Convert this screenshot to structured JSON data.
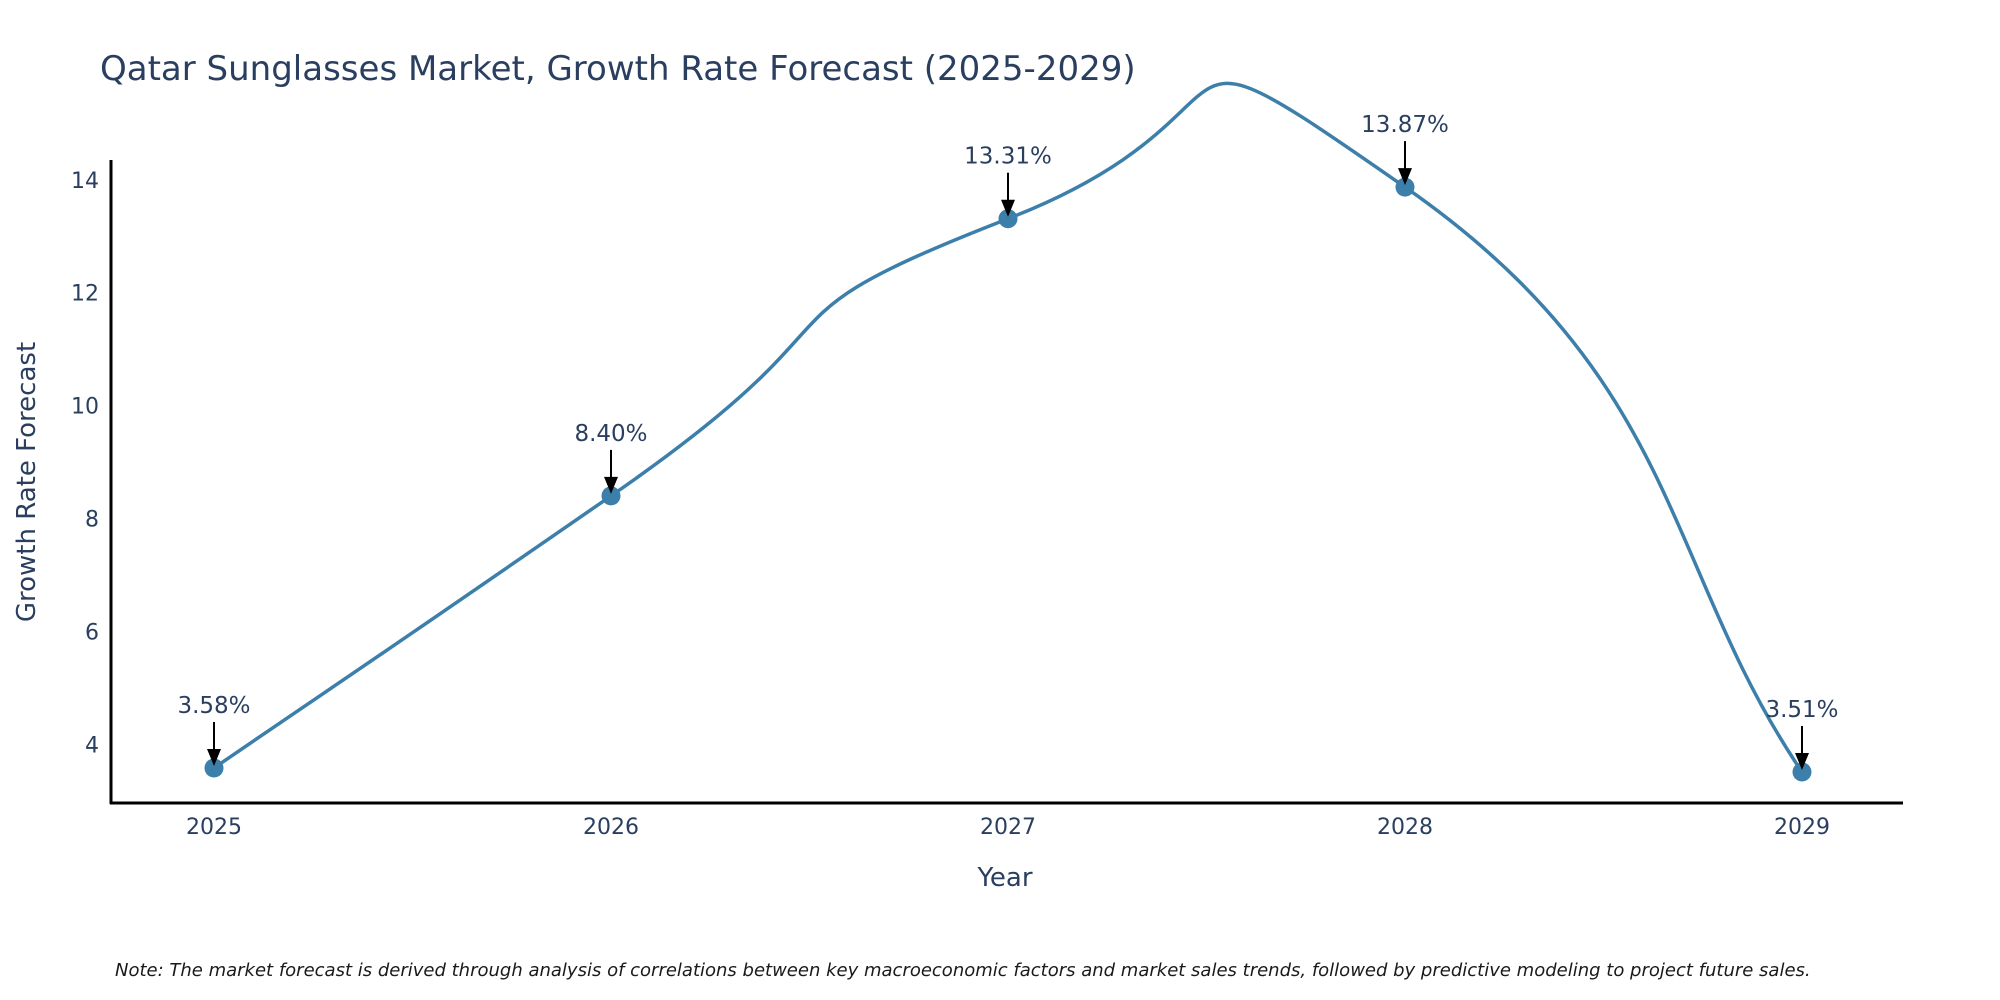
{
  "chart_data": {
    "type": "line",
    "title": "Qatar Sunglasses Market, Growth Rate Forecast (2025-2029)",
    "xlabel": "Year",
    "ylabel": "Growth Rate Forecast",
    "categories": [
      "2025",
      "2026",
      "2027",
      "2028",
      "2029"
    ],
    "series": [
      {
        "name": "Growth Rate Forecast",
        "values": [
          3.58,
          8.4,
          13.31,
          13.87,
          3.51
        ],
        "labels": [
          "3.58%",
          "8.40%",
          "13.31%",
          "13.87%",
          "3.51%"
        ]
      }
    ],
    "ylim": [
      2.96,
      14.35
    ],
    "yticks": [
      4,
      6,
      8,
      10,
      12,
      14
    ],
    "ytick_labels": [
      "4",
      "6",
      "8",
      "10",
      "12",
      "14"
    ],
    "line_shape": "spline",
    "grid": false,
    "legend": "none",
    "note": "Note: The market forecast is derived through analysis of correlations between key macroeconomic factors and market sales trends, followed by predictive modeling to project future sales."
  },
  "colors": {
    "line": "#3d7fab",
    "marker": "#3d7fab",
    "axis": "#000000",
    "text": "#2a3f5f",
    "arrow": "#000000"
  }
}
